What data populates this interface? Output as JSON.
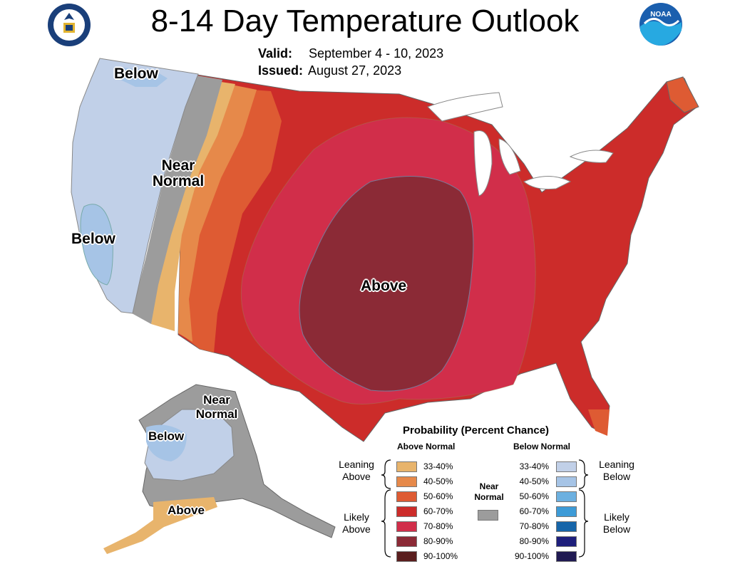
{
  "header": {
    "title": "8-14 Day Temperature Outlook",
    "valid_label": "Valid:",
    "valid_value": "September 4 - 10, 2023",
    "issued_label": "Issued:",
    "issued_value": "August 27, 2023"
  },
  "map_labels": {
    "nw_below": "Below",
    "near_normal_1": "Near",
    "near_normal_2": "Normal",
    "ca_below": "Below",
    "central_above": "Above",
    "ak_near_1": "Near",
    "ak_near_2": "Normal",
    "ak_below": "Below",
    "ak_above": "Above"
  },
  "legend": {
    "title": "Probability (Percent Chance)",
    "above_header": "Above Normal",
    "below_header": "Below Normal",
    "near_normal_1": "Near",
    "near_normal_2": "Normal",
    "near_color": "#9c9c9c",
    "leaning_above_1": "Leaning",
    "leaning_above_2": "Above",
    "likely_above_1": "Likely",
    "likely_above_2": "Above",
    "leaning_below_1": "Leaning",
    "leaning_below_2": "Below",
    "likely_below_1": "Likely",
    "likely_below_2": "Below",
    "above": [
      {
        "label": "33-40%",
        "color": "#e8b46c"
      },
      {
        "label": "40-50%",
        "color": "#e6894a"
      },
      {
        "label": "50-60%",
        "color": "#de5b33"
      },
      {
        "label": "60-70%",
        "color": "#cc2c2a"
      },
      {
        "label": "70-80%",
        "color": "#d12e4a"
      },
      {
        "label": "80-90%",
        "color": "#8b2a36"
      },
      {
        "label": "90-100%",
        "color": "#5a1e1e"
      }
    ],
    "below": [
      {
        "label": "33-40%",
        "color": "#c1d0e8"
      },
      {
        "label": "40-50%",
        "color": "#a6c4e6"
      },
      {
        "label": "50-60%",
        "color": "#6cb0e0"
      },
      {
        "label": "60-70%",
        "color": "#3d9bd7"
      },
      {
        "label": "70-80%",
        "color": "#1665a9"
      },
      {
        "label": "80-90%",
        "color": "#1e1f7c"
      },
      {
        "label": "90-100%",
        "color": "#201a52"
      }
    ]
  }
}
